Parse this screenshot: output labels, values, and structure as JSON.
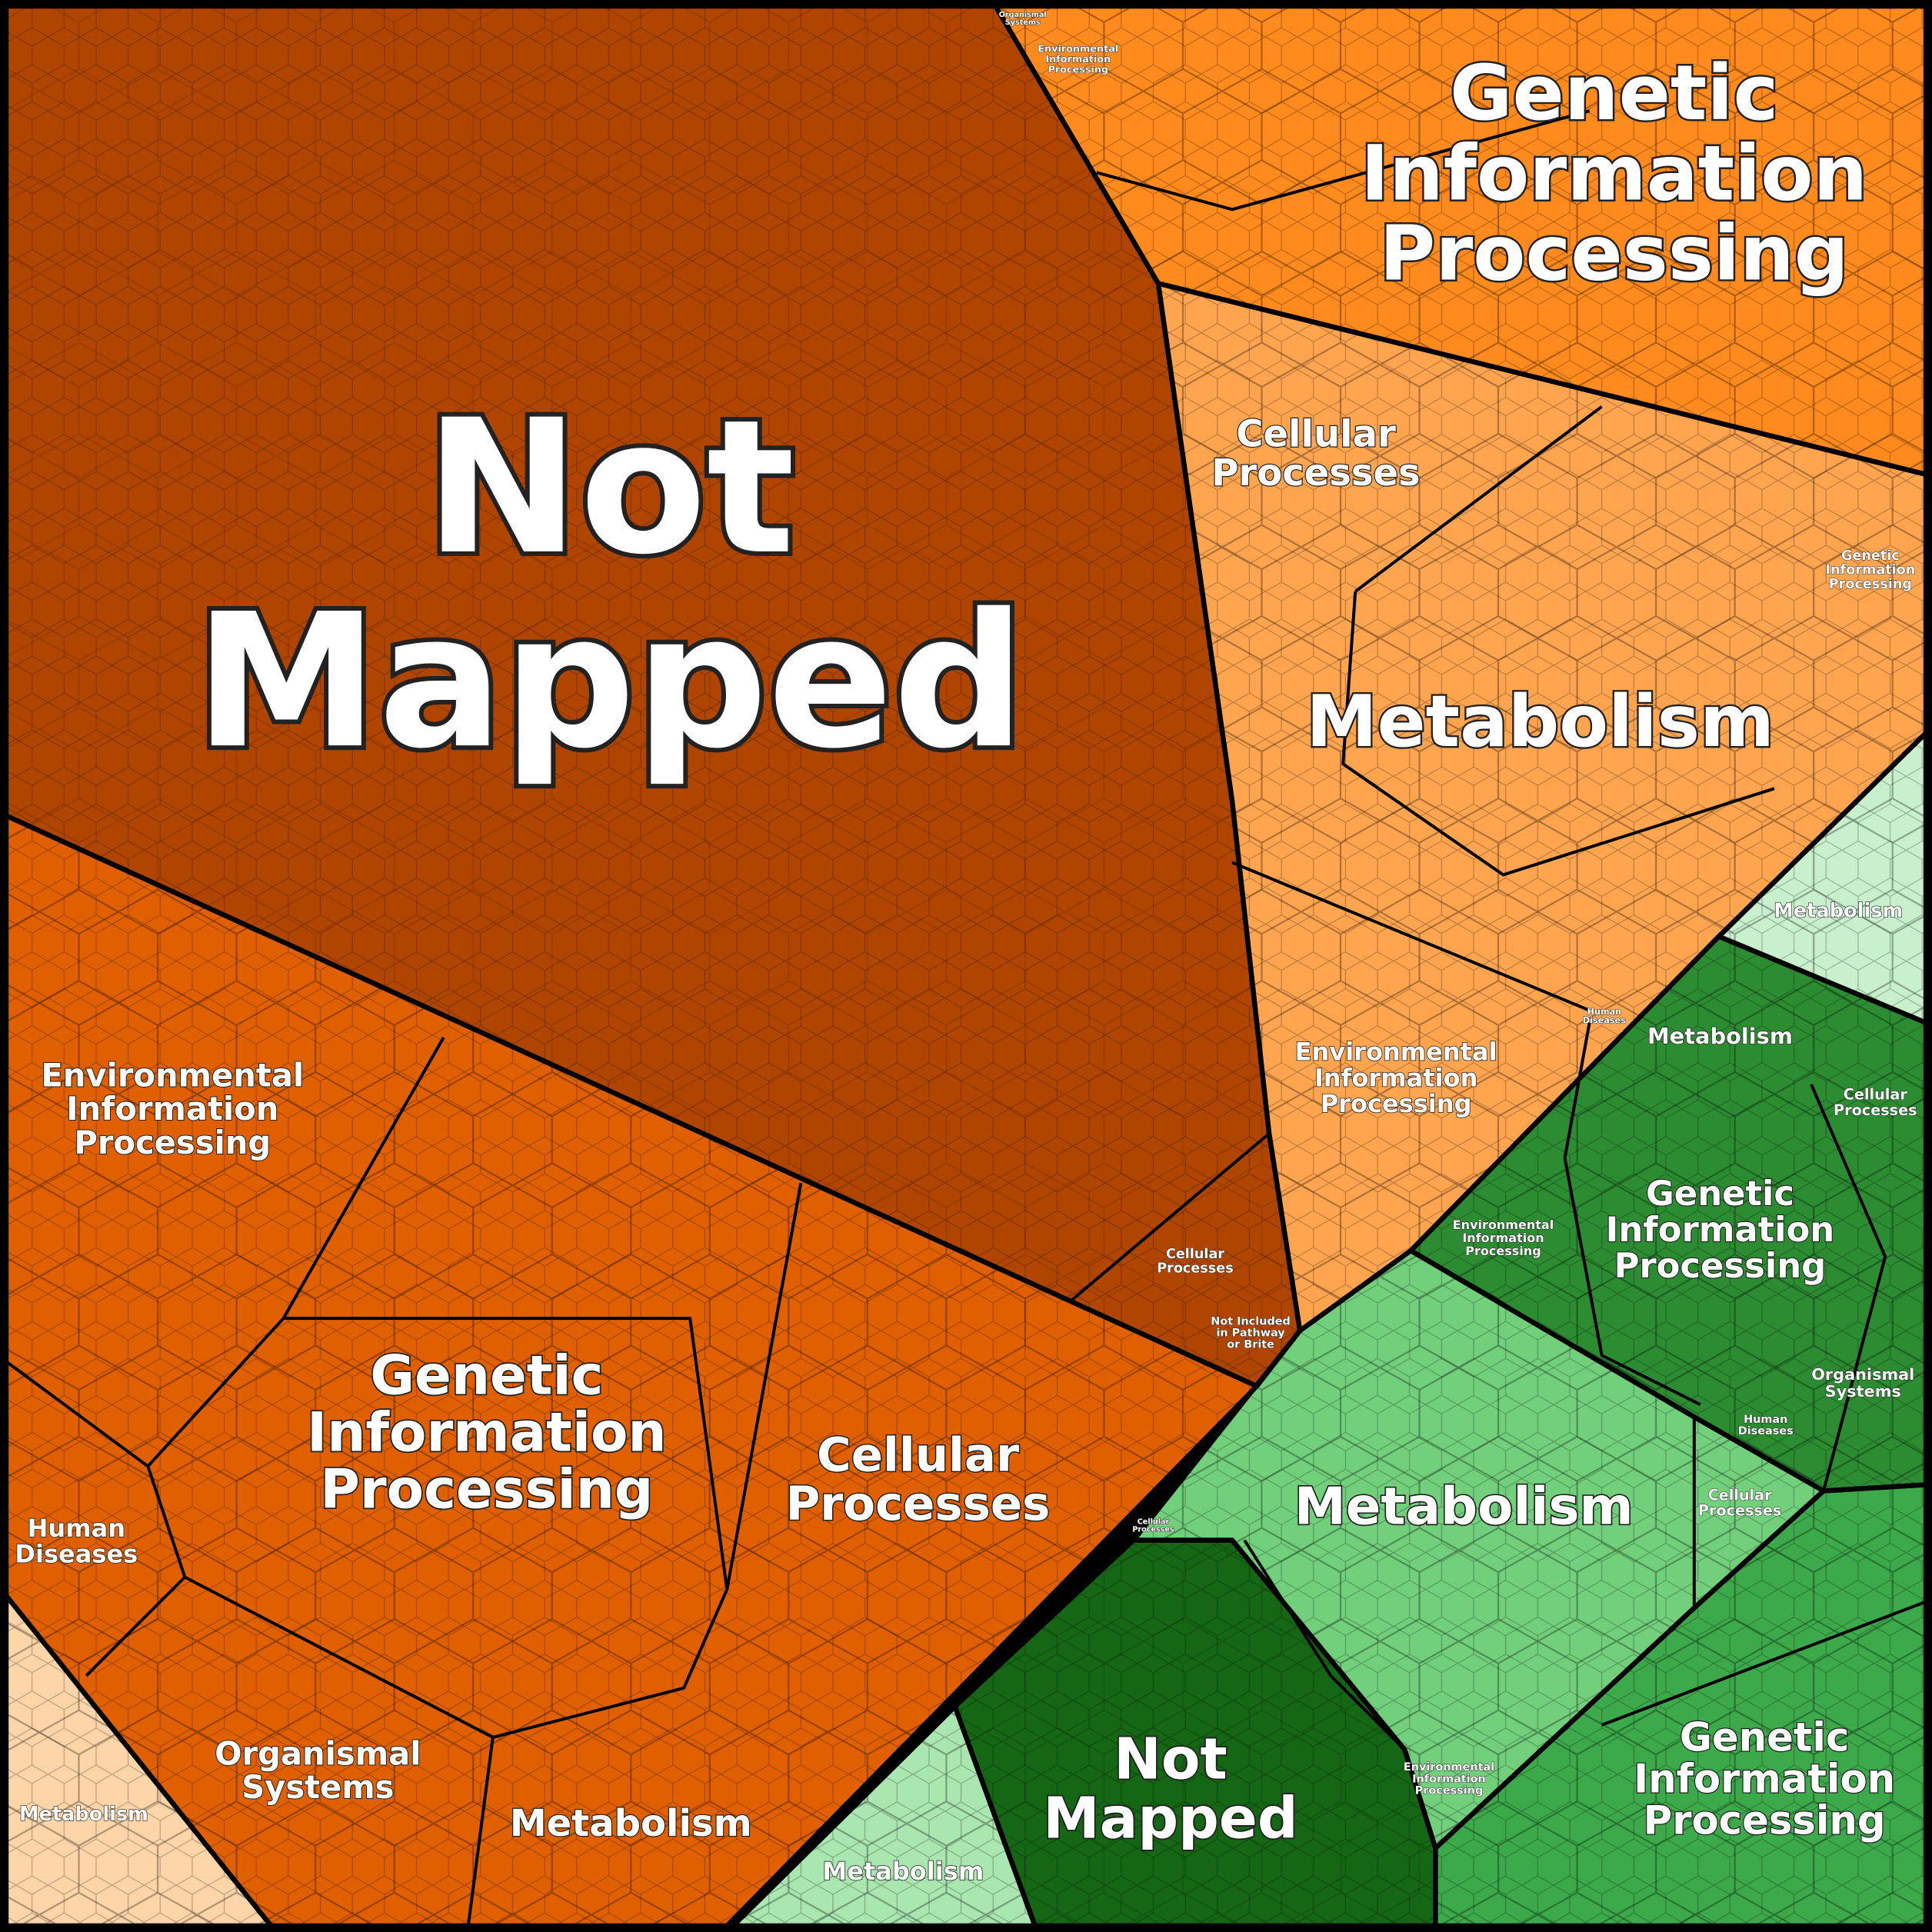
{
  "regions": [
    {
      "color": "#b04500",
      "labels": [
        "Not Mapped",
        "Cellular Processes",
        "Not Included in Pathway or Brite"
      ]
    },
    {
      "color": "#e06000",
      "labels": [
        "Environmental Information Processing",
        "Genetic Information Processing",
        "Cellular Processes",
        "Human Diseases",
        "Organismal Systems",
        "Metabolism"
      ]
    },
    {
      "color": "#fdd5a8",
      "labels": [
        "Metabolism"
      ]
    },
    {
      "color": "#ff8a1e",
      "labels": [
        "Genetic Information Processing",
        "Environmental Information Processing",
        "Organismal Systems"
      ]
    },
    {
      "color": "#ffa550",
      "labels": [
        "Cellular Processes",
        "Metabolism",
        "Environmental Information Processing",
        "Genetic Information Processing",
        "Human Diseases"
      ]
    },
    {
      "color": "#c8f0cc",
      "labels": [
        "Metabolism"
      ]
    },
    {
      "color": "#2c8c32",
      "labels": [
        "Metabolism",
        "Cellular Processes",
        "Genetic Information Processing",
        "Environmental Information Processing",
        "Organismal Systems",
        "Human Diseases"
      ]
    },
    {
      "color": "#72d07c",
      "labels": [
        "Metabolism",
        "Cellular Processes",
        "Environmental Information Processing"
      ]
    },
    {
      "color": "#156615",
      "labels": [
        "Not Mapped",
        "Cellular Processes"
      ]
    },
    {
      "color": "#a9e6b0",
      "labels": [
        "Metabolism"
      ]
    },
    {
      "color": "#3ca94a",
      "labels": [
        "Genetic Information Processing"
      ]
    }
  ]
}
